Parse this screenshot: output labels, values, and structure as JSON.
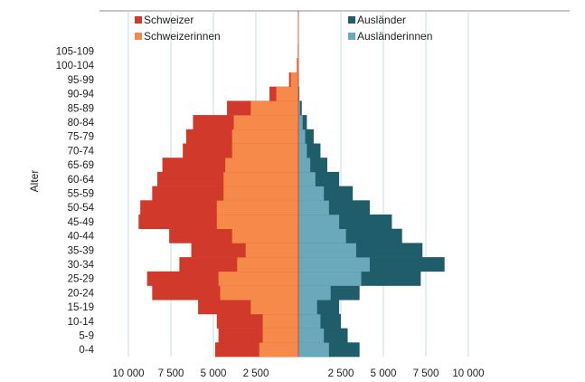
{
  "chart_data": {
    "type": "bar",
    "orientation": "horizontal-population-pyramid",
    "ylabel": "Alter",
    "xlabel": "",
    "age_groups": [
      "0-4",
      "5-9",
      "10-14",
      "15-19",
      "20-24",
      "25-29",
      "30-34",
      "35-39",
      "40-44",
      "45-49",
      "50-54",
      "55-59",
      "60-64",
      "65-69",
      "70-74",
      "75-79",
      "80-84",
      "85-89",
      "90-94",
      "95-99",
      "100-104",
      "105-109"
    ],
    "left_series": [
      {
        "name": "Schweizer",
        "color": "#d13a2a",
        "values": [
          4900,
          4700,
          4800,
          5900,
          8600,
          8900,
          7000,
          6300,
          7600,
          9400,
          9300,
          8600,
          8300,
          8000,
          6800,
          6600,
          6200,
          4200,
          1700,
          550,
          100,
          30
        ]
      },
      {
        "name": "Schweizerinnen",
        "color": "#f58a4a",
        "values": [
          2300,
          2100,
          2100,
          2800,
          4600,
          4700,
          3600,
          3100,
          3900,
          4800,
          4800,
          4400,
          4400,
          4300,
          3900,
          3900,
          3800,
          2800,
          1300,
          450,
          100,
          30
        ]
      }
    ],
    "right_series": [
      {
        "name": "Ausländer",
        "color": "#1f5d6b",
        "values": [
          3600,
          2900,
          2500,
          2400,
          3600,
          7200,
          8600,
          7300,
          6100,
          5500,
          4200,
          3200,
          2400,
          1700,
          1300,
          900,
          500,
          200,
          60,
          20,
          5,
          2
        ]
      },
      {
        "name": "Ausländerinnen",
        "color": "#6aa9bb",
        "values": [
          1800,
          1500,
          1300,
          1100,
          1900,
          3700,
          4200,
          3400,
          2800,
          2400,
          1800,
          1500,
          1000,
          700,
          500,
          400,
          250,
          100,
          40,
          10,
          5,
          2
        ]
      }
    ],
    "x_ticks_left": [
      "10 000",
      "7 500",
      "5 000",
      "2 500"
    ],
    "x_ticks_right": [
      "2 500",
      "5 000",
      "7 500",
      "10 000"
    ],
    "x_tick_values": [
      10000,
      7500,
      5000,
      2500
    ],
    "xlim": [
      0,
      10000
    ],
    "grid": true,
    "legend": {
      "left_position": "top-left",
      "right_position": "top-right"
    }
  }
}
